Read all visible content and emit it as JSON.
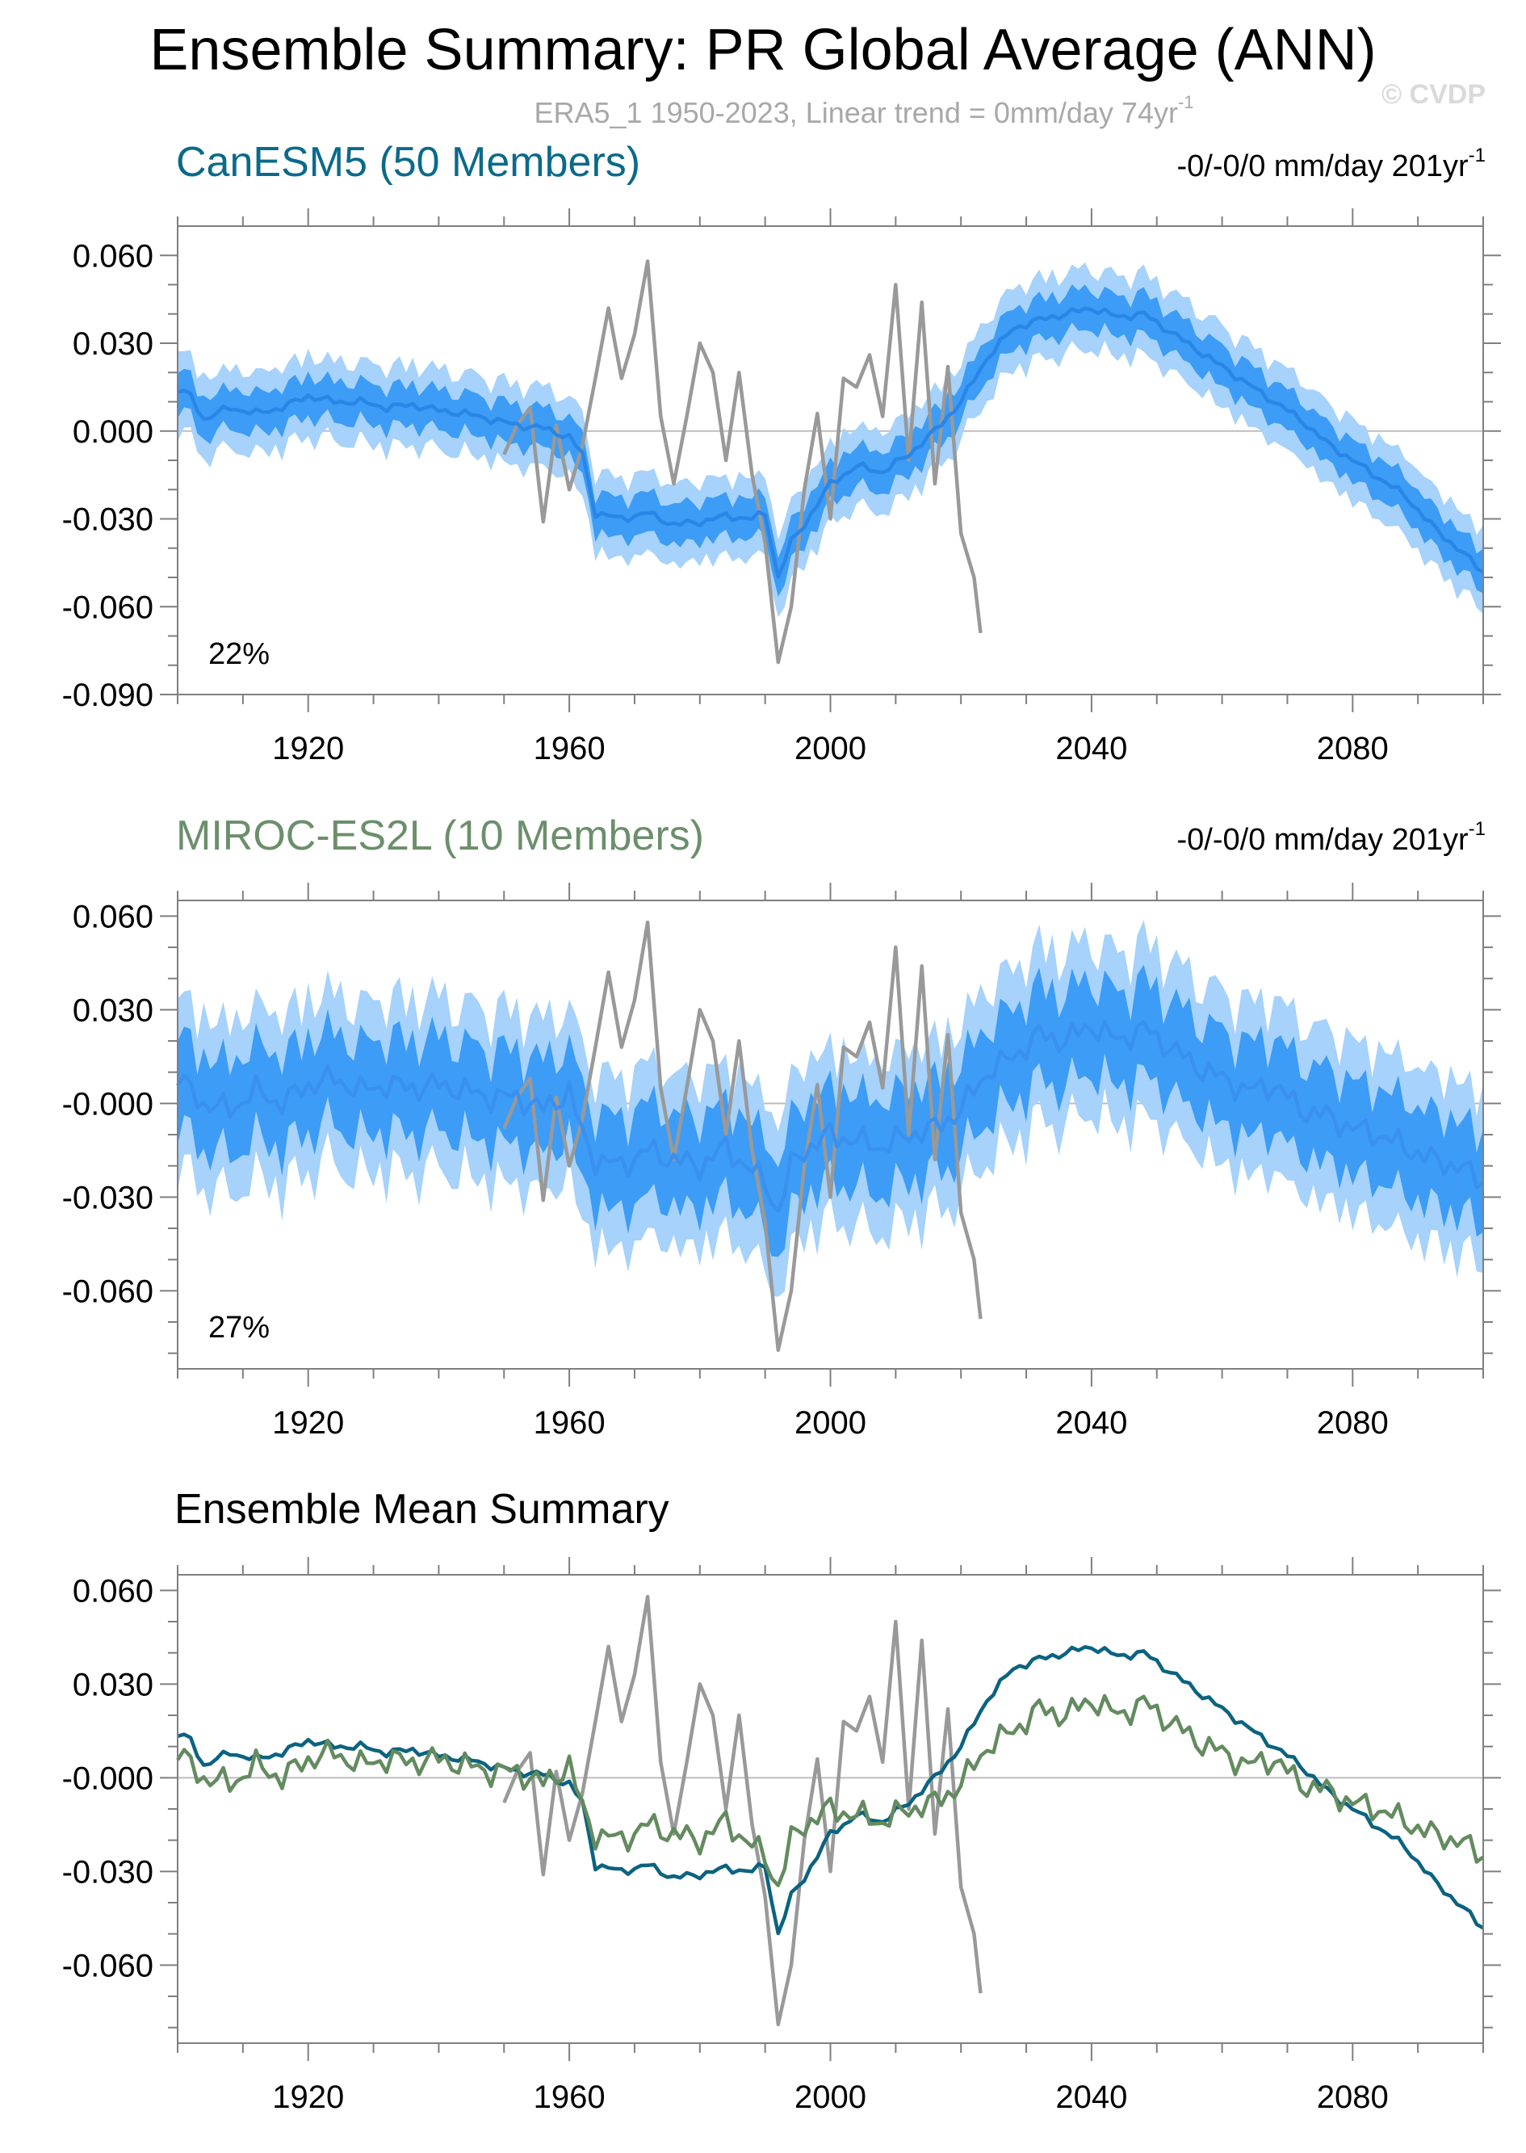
{
  "figure": {
    "title": "Ensemble Summary: PR Global Average (ANN)",
    "subtitle": "ERA5_1 1950-2023, Linear trend = 0mm/day 74yr",
    "subtitle_sup": "-1",
    "watermark": "© CVDP"
  },
  "colors": {
    "obs": "#999999",
    "band_outer": "#a6d2fb",
    "band_inner": "#3c9cf6",
    "canesm_mean": "#2a86e6",
    "miroc_mean": "#3a90ee",
    "canesm_title": "#0b6a8a",
    "miroc_title": "#6b8f6b",
    "summary_canesm": "#0b6380",
    "summary_miroc": "#638b5f"
  },
  "panels": [
    {
      "title": "CanESM5 (50 Members)",
      "trend_text": "-0/-0/0 mm/day 201yr",
      "trend_sup": "-1",
      "percent": "22%",
      "yticks": [
        "0.060",
        "0.030",
        "0.000",
        "-0.030",
        "-0.060",
        "-0.090"
      ],
      "xticks": [
        "1920",
        "1960",
        "2000",
        "2040",
        "2080"
      ]
    },
    {
      "title": "MIROC-ES2L (10 Members)",
      "trend_text": "-0/-0/0 mm/day 201yr",
      "trend_sup": "-1",
      "percent": "27%",
      "yticks": [
        "0.060",
        "0.030",
        "-0.000",
        "-0.030",
        "-0.060"
      ],
      "xticks": [
        "1920",
        "1960",
        "2000",
        "2040",
        "2080"
      ]
    },
    {
      "title": "Ensemble Mean Summary",
      "yticks": [
        "0.060",
        "0.030",
        "-0.000",
        "-0.030",
        "-0.060"
      ],
      "xticks": [
        "1920",
        "1960",
        "2000",
        "2040",
        "2080"
      ]
    }
  ],
  "chart_data": [
    {
      "type": "line",
      "title": "CanESM5 (50 Members)",
      "xlim": [
        1900,
        2100
      ],
      "ylim": [
        -0.09,
        0.07
      ],
      "series": [
        {
          "name": "ERA5_1",
          "x": [
            1950,
            1952,
            1954,
            1956,
            1958,
            1960,
            1962,
            1964,
            1966,
            1968,
            1970,
            1972,
            1974,
            1976,
            1978,
            1980,
            1982,
            1984,
            1986,
            1988,
            1990,
            1992,
            1994,
            1996,
            1998,
            2000,
            2002,
            2004,
            2006,
            2008,
            2010,
            2012,
            2014,
            2016,
            2018,
            2020,
            2022,
            2023
          ],
          "y": [
            -0.008,
            0.002,
            0.008,
            -0.031,
            0.002,
            -0.02,
            -0.005,
            0.018,
            0.042,
            0.018,
            0.033,
            0.058,
            0.005,
            -0.018,
            0.005,
            0.03,
            0.02,
            -0.01,
            0.02,
            -0.015,
            -0.038,
            -0.079,
            -0.06,
            -0.02,
            0.006,
            -0.03,
            0.018,
            0.015,
            0.026,
            0.005,
            0.05,
            -0.01,
            0.044,
            -0.018,
            0.022,
            -0.035,
            -0.05,
            -0.069
          ]
        },
        {
          "name": "ensemble-mean",
          "x": [
            1900,
            1902,
            1904,
            1908,
            1912,
            1916,
            1920,
            1924,
            1928,
            1932,
            1936,
            1940,
            1944,
            1948,
            1952,
            1956,
            1960,
            1962,
            1964,
            1968,
            1972,
            1976,
            1980,
            1984,
            1988,
            1990,
            1992,
            1994,
            1996,
            2000,
            2004,
            2008,
            2012,
            2016,
            2020,
            2024,
            2028,
            2032,
            2036,
            2040,
            2044,
            2048,
            2052,
            2056,
            2060,
            2064,
            2068,
            2072,
            2076,
            2080,
            2084,
            2088,
            2092,
            2096,
            2100
          ],
          "y": [
            0.014,
            0.012,
            0.004,
            0.008,
            0.006,
            0.008,
            0.012,
            0.01,
            0.01,
            0.008,
            0.009,
            0.007,
            0.006,
            0.004,
            0.002,
            0.001,
            -0.002,
            -0.008,
            -0.028,
            -0.03,
            -0.028,
            -0.032,
            -0.031,
            -0.029,
            -0.03,
            -0.028,
            -0.05,
            -0.038,
            -0.032,
            -0.018,
            -0.012,
            -0.014,
            -0.008,
            0.0,
            0.01,
            0.025,
            0.035,
            0.038,
            0.04,
            0.042,
            0.039,
            0.04,
            0.034,
            0.028,
            0.022,
            0.016,
            0.01,
            0.004,
            -0.004,
            -0.01,
            -0.016,
            -0.022,
            -0.032,
            -0.04,
            -0.048
          ]
        }
      ]
    },
    {
      "type": "line",
      "title": "MIROC-ES2L (10 Members)",
      "xlim": [
        1900,
        2100
      ],
      "ylim": [
        -0.085,
        0.065
      ],
      "series": [
        {
          "name": "ERA5_1",
          "x": [
            1950,
            1952,
            1954,
            1956,
            1958,
            1960,
            1962,
            1964,
            1966,
            1968,
            1970,
            1972,
            1974,
            1976,
            1978,
            1980,
            1982,
            1984,
            1986,
            1988,
            1990,
            1992,
            1994,
            1996,
            1998,
            2000,
            2002,
            2004,
            2006,
            2008,
            2010,
            2012,
            2014,
            2016,
            2018,
            2020,
            2022,
            2023
          ],
          "y": [
            -0.008,
            0.002,
            0.008,
            -0.031,
            0.002,
            -0.02,
            -0.005,
            0.018,
            0.042,
            0.018,
            0.033,
            0.058,
            0.005,
            -0.018,
            0.005,
            0.03,
            0.02,
            -0.01,
            0.02,
            -0.015,
            -0.038,
            -0.079,
            -0.06,
            -0.02,
            0.006,
            -0.03,
            0.018,
            0.015,
            0.026,
            0.005,
            0.05,
            -0.01,
            0.044,
            -0.018,
            0.022,
            -0.035,
            -0.05,
            -0.069
          ]
        },
        {
          "name": "ensemble-mean",
          "x": [
            1900,
            1904,
            1908,
            1912,
            1916,
            1920,
            1924,
            1928,
            1932,
            1936,
            1940,
            1944,
            1948,
            1952,
            1956,
            1960,
            1962,
            1964,
            1968,
            1972,
            1976,
            1980,
            1984,
            1988,
            1990,
            1992,
            1994,
            1996,
            2000,
            2004,
            2008,
            2012,
            2016,
            2020,
            2024,
            2028,
            2032,
            2036,
            2040,
            2044,
            2048,
            2052,
            2056,
            2060,
            2064,
            2068,
            2072,
            2076,
            2080,
            2084,
            2088,
            2092,
            2096,
            2100
          ],
          "y": [
            0.008,
            0.0,
            -0.002,
            0.004,
            0.0,
            0.006,
            0.008,
            0.004,
            0.006,
            0.005,
            0.006,
            0.004,
            0.002,
            0.002,
            -0.002,
            0.004,
            -0.01,
            -0.018,
            -0.02,
            -0.015,
            -0.018,
            -0.02,
            -0.014,
            -0.022,
            -0.025,
            -0.035,
            -0.02,
            -0.015,
            -0.01,
            -0.012,
            -0.014,
            -0.01,
            -0.008,
            -0.002,
            0.01,
            0.015,
            0.022,
            0.02,
            0.025,
            0.02,
            0.024,
            0.018,
            0.012,
            0.008,
            0.004,
            0.006,
            -0.002,
            -0.004,
            -0.008,
            -0.01,
            -0.014,
            -0.018,
            -0.02,
            -0.025
          ]
        }
      ]
    },
    {
      "type": "line",
      "title": "Ensemble Mean Summary",
      "xlim": [
        1900,
        2100
      ],
      "ylim": [
        -0.085,
        0.065
      ],
      "series": [
        {
          "name": "ERA5_1",
          "x": [
            1950,
            1952,
            1954,
            1956,
            1958,
            1960,
            1962,
            1964,
            1966,
            1968,
            1970,
            1972,
            1974,
            1976,
            1978,
            1980,
            1982,
            1984,
            1986,
            1988,
            1990,
            1992,
            1994,
            1996,
            1998,
            2000,
            2002,
            2004,
            2006,
            2008,
            2010,
            2012,
            2014,
            2016,
            2018,
            2020,
            2022,
            2023
          ],
          "y": [
            -0.008,
            0.002,
            0.008,
            -0.031,
            0.002,
            -0.02,
            -0.005,
            0.018,
            0.042,
            0.018,
            0.033,
            0.058,
            0.005,
            -0.018,
            0.005,
            0.03,
            0.02,
            -0.01,
            0.02,
            -0.015,
            -0.038,
            -0.079,
            -0.06,
            -0.02,
            0.006,
            -0.03,
            0.018,
            0.015,
            0.026,
            0.005,
            0.05,
            -0.01,
            0.044,
            -0.018,
            0.022,
            -0.035,
            -0.05,
            -0.069
          ]
        },
        {
          "name": "CanESM5",
          "x": [
            1900,
            1902,
            1904,
            1908,
            1912,
            1916,
            1920,
            1924,
            1928,
            1932,
            1936,
            1940,
            1944,
            1948,
            1952,
            1956,
            1960,
            1962,
            1964,
            1968,
            1972,
            1976,
            1980,
            1984,
            1988,
            1990,
            1992,
            1994,
            1996,
            2000,
            2004,
            2008,
            2012,
            2016,
            2020,
            2024,
            2028,
            2032,
            2036,
            2040,
            2044,
            2048,
            2052,
            2056,
            2060,
            2064,
            2068,
            2072,
            2076,
            2080,
            2084,
            2088,
            2092,
            2096,
            2100
          ],
          "y": [
            0.014,
            0.012,
            0.004,
            0.008,
            0.006,
            0.008,
            0.012,
            0.01,
            0.01,
            0.008,
            0.009,
            0.007,
            0.006,
            0.004,
            0.002,
            0.001,
            -0.002,
            -0.008,
            -0.028,
            -0.03,
            -0.028,
            -0.032,
            -0.031,
            -0.029,
            -0.03,
            -0.028,
            -0.05,
            -0.038,
            -0.032,
            -0.018,
            -0.012,
            -0.014,
            -0.008,
            0.0,
            0.01,
            0.025,
            0.035,
            0.038,
            0.04,
            0.042,
            0.039,
            0.04,
            0.034,
            0.028,
            0.022,
            0.016,
            0.01,
            0.004,
            -0.004,
            -0.01,
            -0.016,
            -0.022,
            -0.032,
            -0.04,
            -0.048
          ]
        },
        {
          "name": "MIROC-ES2L",
          "x": [
            1900,
            1904,
            1908,
            1912,
            1916,
            1920,
            1924,
            1928,
            1932,
            1936,
            1940,
            1944,
            1948,
            1952,
            1956,
            1960,
            1962,
            1964,
            1968,
            1972,
            1976,
            1980,
            1984,
            1988,
            1990,
            1992,
            1994,
            1996,
            2000,
            2004,
            2008,
            2012,
            2016,
            2020,
            2024,
            2028,
            2032,
            2036,
            2040,
            2044,
            2048,
            2052,
            2056,
            2060,
            2064,
            2068,
            2072,
            2076,
            2080,
            2084,
            2088,
            2092,
            2096,
            2100
          ],
          "y": [
            0.008,
            0.0,
            -0.002,
            0.004,
            0.0,
            0.006,
            0.008,
            0.004,
            0.006,
            0.005,
            0.006,
            0.004,
            0.002,
            0.002,
            -0.002,
            0.004,
            -0.01,
            -0.018,
            -0.02,
            -0.015,
            -0.018,
            -0.02,
            -0.014,
            -0.022,
            -0.025,
            -0.035,
            -0.02,
            -0.015,
            -0.01,
            -0.012,
            -0.014,
            -0.01,
            -0.008,
            -0.002,
            0.01,
            0.015,
            0.022,
            0.02,
            0.025,
            0.02,
            0.024,
            0.018,
            0.012,
            0.008,
            0.004,
            0.006,
            -0.002,
            -0.004,
            -0.008,
            -0.01,
            -0.014,
            -0.018,
            -0.02,
            -0.025
          ]
        }
      ]
    }
  ]
}
